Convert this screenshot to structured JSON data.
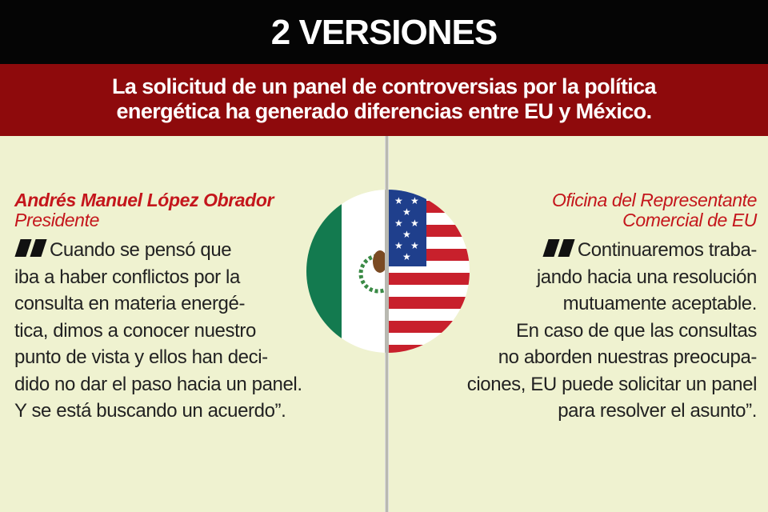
{
  "header": {
    "title": "2 VERSIONES"
  },
  "subtitle": {
    "lines": [
      "La solicitud de un panel de controversias por la política",
      "energética ha generado diferencias entre EU y México."
    ]
  },
  "left": {
    "name": "Andrés Manuel López Obrador",
    "role": "Presidente",
    "quote": [
      "Cuando se pensó que",
      "iba a haber conflictos por la",
      "consulta en materia energé-",
      "tica, dimos a conocer nuestro",
      "punto de vista y ellos han deci-",
      "dido no dar el paso hacia un panel.",
      "Y se está buscando un acuerdo”."
    ]
  },
  "right": {
    "name_lines": [
      "Oficina del Representante",
      "Comercial de EU"
    ],
    "quote": [
      "Continuaremos traba-",
      "jando hacia una resolución",
      "mutuamente aceptable.",
      "En caso de que las consultas",
      "no aborden nuestras preocupa-",
      "ciones, EU puede solicitar un panel",
      "para resolver el asunto”."
    ]
  },
  "flags": {
    "left": "mexico-flag",
    "right": "usa-flag",
    "colors": {
      "green": "#137a4f",
      "red": "#c8202c",
      "blue": "#1f3f8c"
    }
  }
}
